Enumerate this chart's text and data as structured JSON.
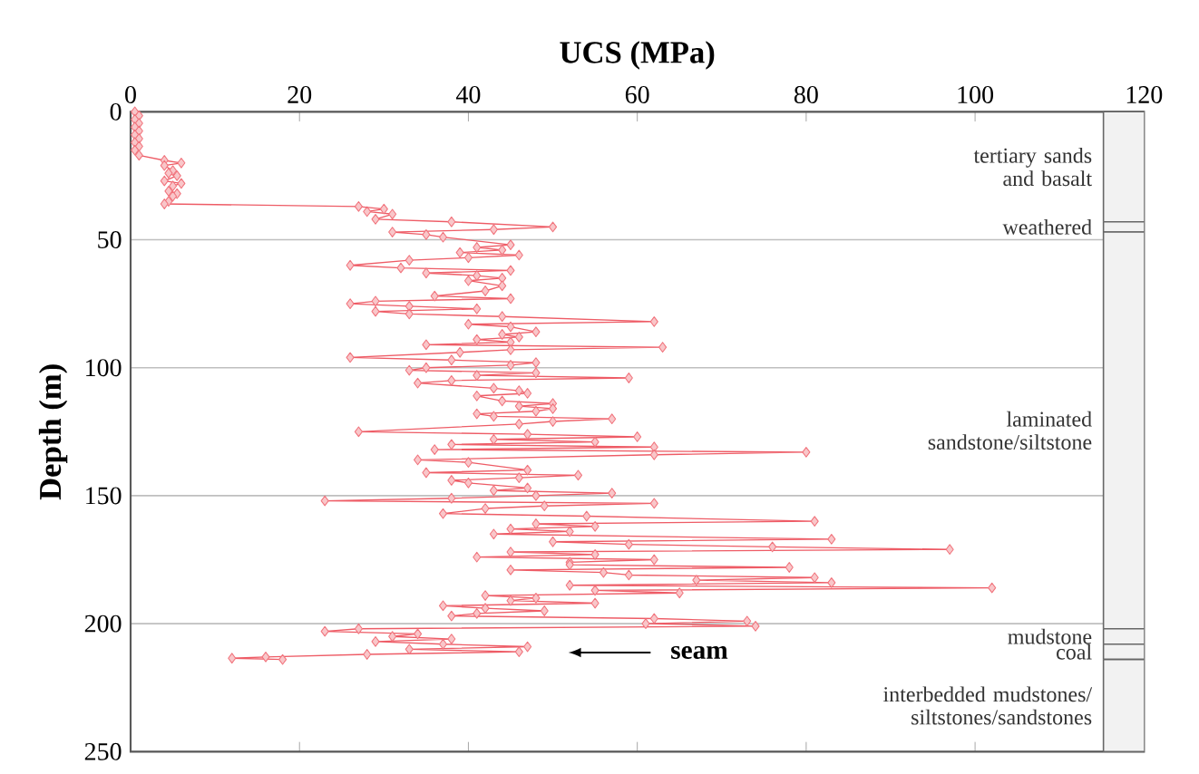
{
  "chart_data": {
    "type": "line",
    "xlabel": "UCS (MPa)",
    "ylabel": "Depth (m)",
    "xlim": [
      0,
      120
    ],
    "xticks": [
      0,
      20,
      40,
      60,
      80,
      100,
      120
    ],
    "ylim": [
      250,
      0
    ],
    "yticks": [
      0,
      50,
      100,
      150,
      200,
      250
    ],
    "grid": "y",
    "marker": "diamond",
    "line_style": "solid",
    "series": [
      {
        "color": "#ee5c66",
        "x": [
          0.5,
          1,
          0.5,
          1,
          0.5,
          1,
          0.5,
          1,
          0.5,
          1,
          0.5,
          1,
          4,
          6,
          4,
          5,
          4.5,
          5.5,
          4,
          6,
          5,
          4.5,
          5.5,
          5,
          4.5,
          4,
          27,
          30,
          28,
          31,
          29,
          38,
          50,
          43,
          31,
          35,
          37,
          45,
          41,
          44,
          39,
          46,
          40,
          33,
          26,
          32,
          45,
          35,
          41,
          44,
          40,
          44,
          42,
          36,
          45,
          29,
          26,
          33,
          41,
          29,
          33,
          44,
          62,
          40,
          45,
          48,
          44,
          46,
          41,
          45,
          35,
          63,
          45,
          39,
          26,
          38,
          48,
          45,
          35,
          33,
          48,
          41,
          59,
          38,
          34,
          43,
          46,
          47,
          41,
          44,
          50,
          46,
          50,
          48,
          41,
          43,
          57,
          50,
          46,
          27,
          47,
          60,
          43,
          55,
          38,
          62,
          36,
          80,
          62,
          34,
          40,
          47,
          35,
          53,
          46,
          38,
          40,
          47,
          43,
          57,
          48,
          38,
          23,
          62,
          49,
          42,
          37,
          54,
          81,
          48,
          55,
          45,
          52,
          43,
          83,
          50,
          59,
          76,
          97,
          45,
          55,
          41,
          62,
          52,
          52,
          78,
          45,
          56,
          59,
          81,
          67,
          83,
          52,
          102,
          55,
          65,
          42,
          48,
          45,
          55,
          37,
          42,
          49,
          41,
          38,
          62,
          73,
          61,
          74,
          27,
          23,
          34,
          31,
          38,
          29,
          37,
          47,
          33,
          46,
          28,
          16,
          12,
          18
        ],
        "values": [
          0,
          1.5,
          3,
          4.5,
          6,
          7.5,
          9,
          10.5,
          12,
          13.5,
          15,
          17,
          19,
          20,
          21,
          23,
          24,
          25,
          27,
          28,
          29,
          31,
          32,
          33,
          35,
          36,
          37,
          38,
          39,
          40,
          42,
          43,
          45,
          46,
          47,
          48,
          49,
          52,
          53,
          54,
          55,
          56,
          57,
          58,
          60,
          61,
          62,
          63,
          64,
          65,
          66,
          68,
          70,
          72,
          73,
          74,
          75,
          76,
          77,
          78,
          79,
          80,
          82,
          83,
          84,
          86,
          87,
          88,
          89,
          90,
          91,
          92,
          93,
          94,
          96,
          97,
          98,
          99,
          100,
          101,
          102,
          103,
          104,
          105,
          106,
          108,
          109,
          110,
          111,
          113,
          114,
          115,
          116,
          117,
          118,
          119,
          120,
          121,
          122,
          125,
          126,
          127,
          128,
          129,
          130,
          131,
          132,
          133,
          134,
          136,
          137,
          140,
          141,
          142,
          143,
          144,
          145,
          147,
          148,
          149,
          150,
          151,
          152,
          153,
          154,
          155,
          157,
          158,
          160,
          161,
          162,
          163,
          164,
          165,
          167,
          168,
          169,
          170,
          171,
          172,
          173,
          174,
          175,
          176,
          177,
          178,
          179,
          180,
          181,
          182,
          183,
          184,
          185,
          186,
          187,
          188,
          189,
          190,
          191,
          192,
          193,
          194,
          195,
          196,
          197,
          198,
          199,
          200,
          201,
          202,
          203,
          204,
          205,
          206,
          207,
          208,
          209,
          210,
          211,
          212,
          213,
          213.5,
          214
        ]
      }
    ],
    "bands": [
      {
        "axis": "y",
        "from": 0,
        "to": 43,
        "label": "tertiary sands and basalt",
        "color": "#f2f2f2"
      },
      {
        "axis": "y",
        "from": 43,
        "to": 47,
        "label": "weathered",
        "color": "#f2f2f2"
      },
      {
        "axis": "y",
        "from": 47,
        "to": 202,
        "label": "laminated sandstone/siltstone",
        "color": "#f2f2f2"
      },
      {
        "axis": "y",
        "from": 202,
        "to": 208,
        "label": "mudstone",
        "color": "#f2f2f2"
      },
      {
        "axis": "y",
        "from": 208,
        "to": 214,
        "label": "coal",
        "color": "#f2f2f2"
      },
      {
        "axis": "y",
        "from": 214,
        "to": 250,
        "label": "interbedded mudstones/ siltstones/sandstones",
        "color": "#f2f2f2"
      }
    ],
    "annotations": [
      "seam"
    ]
  }
}
